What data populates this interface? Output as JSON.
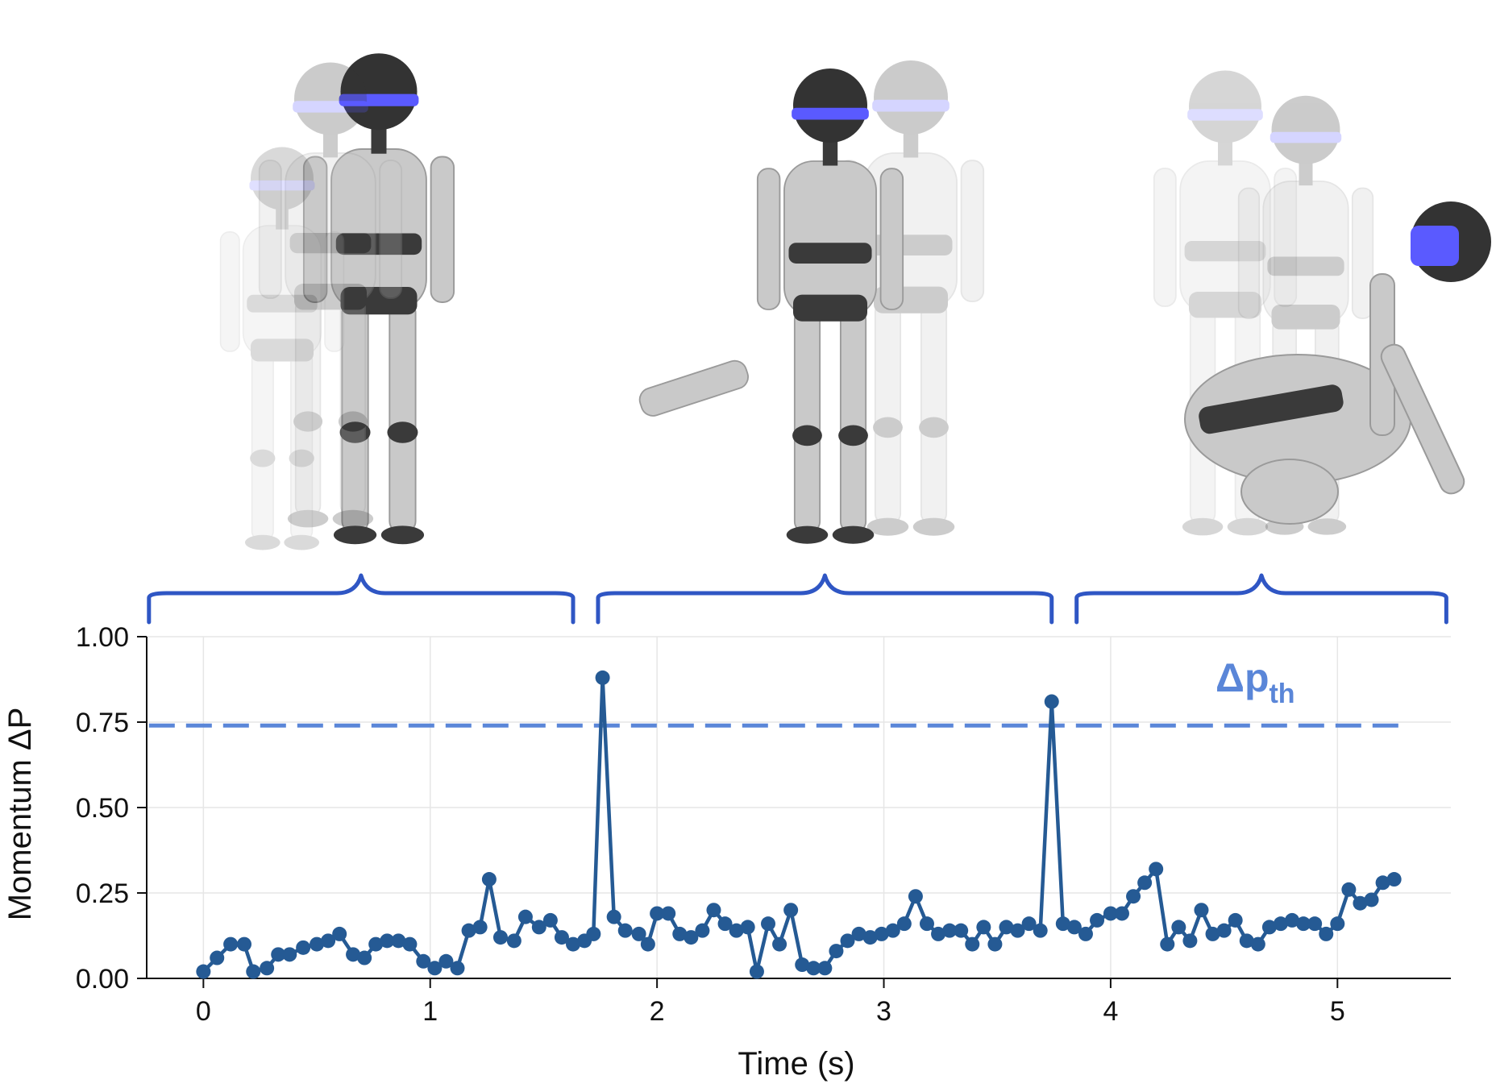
{
  "colors": {
    "series": "#255a94",
    "threshold": "#5a86d8",
    "brace": "#2f56c4",
    "grid": "#e6e6e6",
    "axis": "#111111",
    "robot_body": "#c9c9c9",
    "robot_dark": "#3a3a3a",
    "visor": "#5a5aff"
  },
  "robots": [
    {
      "pose": "kneel-to-stand"
    },
    {
      "pose": "leg-kick"
    },
    {
      "pose": "fall-crouch"
    }
  ],
  "chart_data": {
    "type": "line",
    "title": "",
    "xlabel": "Time (s)",
    "ylabel": "Momentum ΔP",
    "xlim": [
      -0.25,
      5.5
    ],
    "ylim": [
      0.0,
      1.0
    ],
    "xticks": [
      0,
      1,
      2,
      3,
      4,
      5
    ],
    "xtick_labels": [
      "0",
      "1",
      "2",
      "3",
      "4",
      "5"
    ],
    "yticks": [
      0.0,
      0.25,
      0.5,
      0.75,
      1.0
    ],
    "ytick_labels": [
      "0.00",
      "0.25",
      "0.50",
      "0.75",
      "1.00"
    ],
    "grid": true,
    "threshold": {
      "value": 0.74,
      "label_main": "Δp",
      "label_sub": "th"
    },
    "segments": [
      {
        "x_start": -0.24,
        "x_end": 1.63
      },
      {
        "x_start": 1.74,
        "x_end": 3.74
      },
      {
        "x_start": 3.85,
        "x_end": 5.48
      }
    ],
    "series": [
      {
        "x": [
          0.0,
          0.06,
          0.12,
          0.18,
          0.22,
          0.28,
          0.33,
          0.38,
          0.44,
          0.5,
          0.55,
          0.6,
          0.66,
          0.71,
          0.76,
          0.81,
          0.86,
          0.91,
          0.97,
          1.02,
          1.07,
          1.12,
          1.17,
          1.22,
          1.26,
          1.31,
          1.37,
          1.42,
          1.48,
          1.53,
          1.58,
          1.63,
          1.68,
          1.72,
          1.76,
          1.81,
          1.86,
          1.92,
          1.96,
          2.0,
          2.05,
          2.1,
          2.15,
          2.2,
          2.25,
          2.3,
          2.35,
          2.4,
          2.44,
          2.49,
          2.54,
          2.59,
          2.64,
          2.69,
          2.74,
          2.79,
          2.84,
          2.89,
          2.94,
          2.99,
          3.04,
          3.09,
          3.14,
          3.19,
          3.24,
          3.29,
          3.34,
          3.39,
          3.44,
          3.49,
          3.54,
          3.59,
          3.64,
          3.69,
          3.74,
          3.79,
          3.84,
          3.89,
          3.94,
          4.0,
          4.05,
          4.1,
          4.15,
          4.2,
          4.25,
          4.3,
          4.35,
          4.4,
          4.45,
          4.5,
          4.55,
          4.6,
          4.65,
          4.7,
          4.75,
          4.8,
          4.85,
          4.9,
          4.95,
          5.0,
          5.05,
          5.1,
          5.15,
          5.2,
          5.25
        ],
        "y": [
          0.02,
          0.06,
          0.1,
          0.1,
          0.02,
          0.03,
          0.07,
          0.07,
          0.09,
          0.1,
          0.11,
          0.13,
          0.07,
          0.06,
          0.1,
          0.11,
          0.11,
          0.1,
          0.05,
          0.03,
          0.05,
          0.03,
          0.14,
          0.15,
          0.29,
          0.12,
          0.11,
          0.18,
          0.15,
          0.17,
          0.12,
          0.1,
          0.11,
          0.13,
          0.88,
          0.18,
          0.14,
          0.13,
          0.1,
          0.19,
          0.19,
          0.13,
          0.12,
          0.14,
          0.2,
          0.16,
          0.14,
          0.15,
          0.02,
          0.16,
          0.1,
          0.2,
          0.04,
          0.03,
          0.03,
          0.08,
          0.11,
          0.13,
          0.12,
          0.13,
          0.14,
          0.16,
          0.24,
          0.16,
          0.13,
          0.14,
          0.14,
          0.1,
          0.15,
          0.1,
          0.15,
          0.14,
          0.16,
          0.14,
          0.81,
          0.16,
          0.15,
          0.13,
          0.17,
          0.19,
          0.19,
          0.24,
          0.28,
          0.32,
          0.1,
          0.15,
          0.11,
          0.2,
          0.13,
          0.14,
          0.17,
          0.11,
          0.1,
          0.15,
          0.16,
          0.17,
          0.16,
          0.16,
          0.13,
          0.16,
          0.26,
          0.22,
          0.23,
          0.28,
          0.29
        ]
      }
    ]
  }
}
